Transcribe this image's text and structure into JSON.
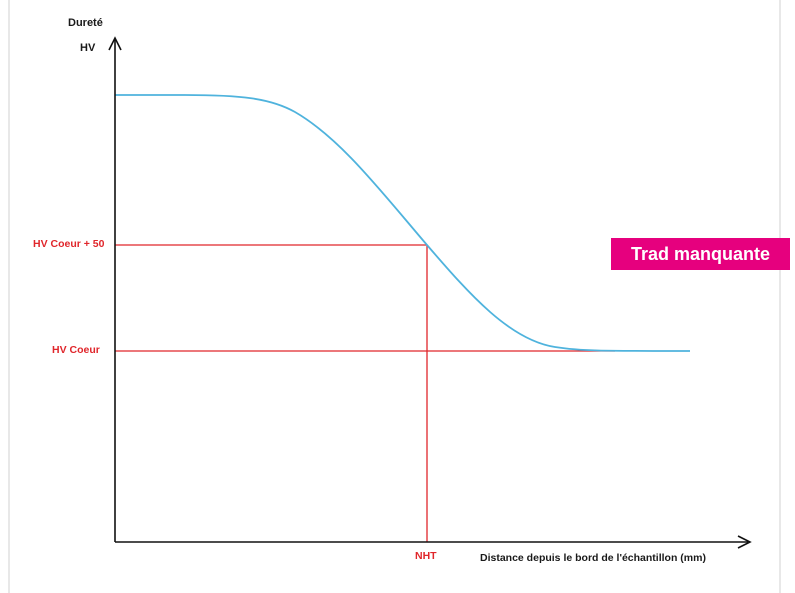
{
  "diagram": {
    "y_axis_label_line1": "Dureté",
    "y_axis_label_line2": "HV",
    "x_axis_label": "Distance depuis le bord de l'échantillon (mm)",
    "level_labels": {
      "upper": "HV Coeur + 50",
      "lower": "HV Coeur"
    },
    "x_marker_label": "NHT",
    "colors": {
      "curve": "#4fb3dd",
      "reference_lines": "#e0262b",
      "axes": "#111111",
      "badge": "#e6007e"
    }
  },
  "badge": {
    "text": "Trad manquante"
  }
}
